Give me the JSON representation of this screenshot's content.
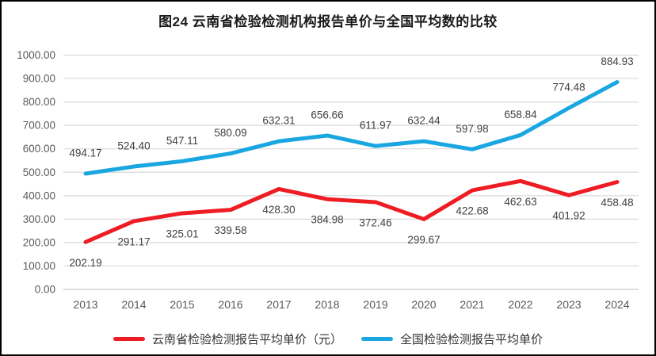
{
  "chart_data": {
    "type": "line",
    "title": "图24  云南省检验检测机构报告单价与全国平均数的比较",
    "categories": [
      "2013",
      "2014",
      "2015",
      "2016",
      "2017",
      "2018",
      "2019",
      "2020",
      "2021",
      "2022",
      "2023",
      "2024"
    ],
    "series": [
      {
        "name": "云南省检验检测报告平均单价（元）",
        "color": "#ee1c23",
        "values": [
          202.19,
          291.17,
          325.01,
          339.58,
          428.3,
          384.98,
          372.46,
          299.67,
          422.68,
          462.63,
          401.92,
          458.48
        ],
        "label_side": "below"
      },
      {
        "name": "全国检验检测报告平均单价",
        "color": "#1aa7e1",
        "values": [
          494.17,
          524.4,
          547.11,
          580.09,
          632.31,
          656.66,
          611.97,
          632.44,
          597.98,
          658.84,
          774.48,
          884.93
        ],
        "label_side": "above"
      }
    ],
    "ylim": [
      0,
      1000
    ],
    "ytick_step": 100,
    "yticks": [
      "0.00",
      "100.00",
      "200.00",
      "300.00",
      "400.00",
      "500.00",
      "600.00",
      "700.00",
      "800.00",
      "900.00",
      "1000.00"
    ],
    "grid": true,
    "legend_position": "bottom",
    "colors": {
      "gridline": "#d9d9d9",
      "axis_line": "#c9c9c9",
      "tick_label": "#595959",
      "data_label": "#404040"
    }
  }
}
